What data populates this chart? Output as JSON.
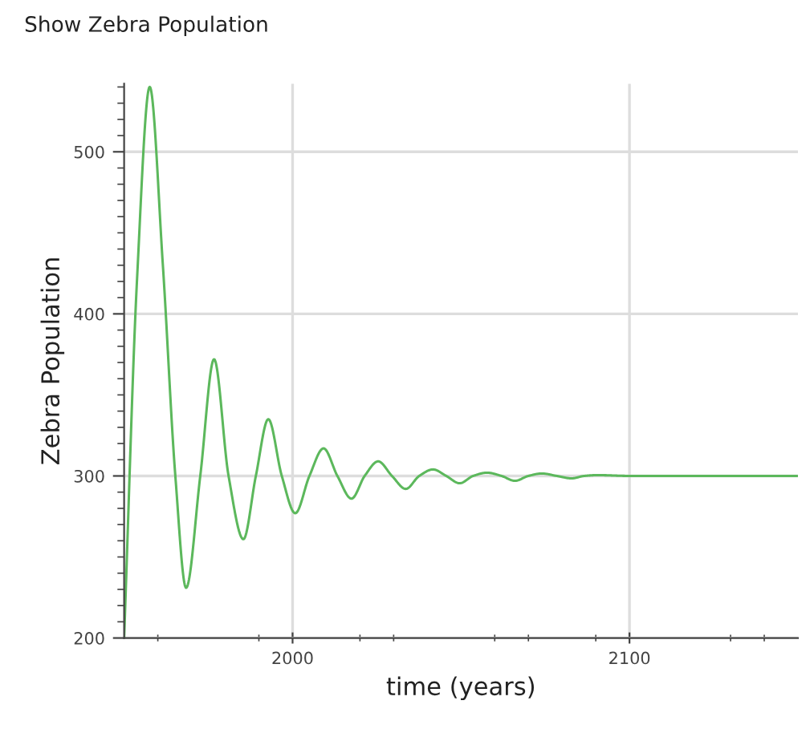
{
  "chart_data": {
    "type": "line",
    "title": "Show Zebra Population",
    "xlabel": "time (years)",
    "ylabel": "Zebra Population",
    "xlim": [
      1950,
      2150
    ],
    "ylim": [
      200,
      542
    ],
    "xticks": [
      {
        "value": 1960,
        "label": null
      },
      {
        "value": 1990,
        "label": null
      },
      2000,
      {
        "value": 2020,
        "label": null
      },
      {
        "value": 2030,
        "label": null
      },
      {
        "value": 2060,
        "label": null
      },
      {
        "value": 2070,
        "label": null
      },
      {
        "value": 2090,
        "label": null
      },
      2100,
      {
        "value": 2130,
        "label": null
      },
      {
        "value": 2140,
        "label": null
      }
    ],
    "yticks": [
      200,
      {
        "value": 210,
        "label": null
      },
      {
        "value": 220,
        "label": null
      },
      {
        "value": 230,
        "label": null
      },
      {
        "value": 240,
        "label": null
      },
      {
        "value": 250,
        "label": null
      },
      {
        "value": 260,
        "label": null
      },
      {
        "value": 270,
        "label": null
      },
      {
        "value": 280,
        "label": null
      },
      {
        "value": 290,
        "label": null
      },
      300,
      {
        "value": 310,
        "label": null
      },
      {
        "value": 320,
        "label": null
      },
      {
        "value": 330,
        "label": null
      },
      {
        "value": 340,
        "label": null
      },
      {
        "value": 350,
        "label": null
      },
      {
        "value": 360,
        "label": null
      },
      {
        "value": 370,
        "label": null
      },
      {
        "value": 380,
        "label": null
      },
      {
        "value": 390,
        "label": null
      },
      400,
      {
        "value": 410,
        "label": null
      },
      {
        "value": 420,
        "label": null
      },
      {
        "value": 430,
        "label": null
      },
      {
        "value": 440,
        "label": null
      },
      {
        "value": 450,
        "label": null
      },
      {
        "value": 460,
        "label": null
      },
      {
        "value": 470,
        "label": null
      },
      {
        "value": 480,
        "label": null
      },
      {
        "value": 490,
        "label": null
      },
      500,
      {
        "value": 510,
        "label": null
      },
      {
        "value": 520,
        "label": null
      },
      {
        "value": 530,
        "label": null
      },
      {
        "value": 540,
        "label": null
      }
    ],
    "grid": true,
    "marker": "none",
    "line_style": "solid",
    "series": [
      {
        "color": "#5cb85c",
        "x": [
          1950,
          1953.8,
          1957.6,
          1961.5,
          1965.2,
          1968.4,
          1972.6,
          1976.7,
          1981,
          1985.4,
          1989.1,
          1992.8,
          1996.8,
          2000.8,
          2005,
          2009.2,
          2013.3,
          2017.5,
          2021.4,
          2025.4,
          2029.5,
          2033.6,
          2037.6,
          2041.7,
          2045.6,
          2049.6,
          2053.6,
          2057.7,
          2062,
          2066,
          2070,
          2074,
          2078.4,
          2082.8,
          2086.6,
          2090.5,
          2100,
          2120,
          2150
        ],
        "values": [
          200,
          420,
          540,
          430,
          300,
          231,
          300,
          372,
          300,
          261,
          300,
          335,
          300,
          277,
          300,
          317,
          300,
          286,
          300,
          309,
          300,
          292,
          300,
          304,
          300,
          295.5,
          300,
          302,
          300,
          297,
          300,
          301.5,
          300,
          298.5,
          300,
          300.5,
          300,
          300,
          300
        ]
      }
    ]
  }
}
